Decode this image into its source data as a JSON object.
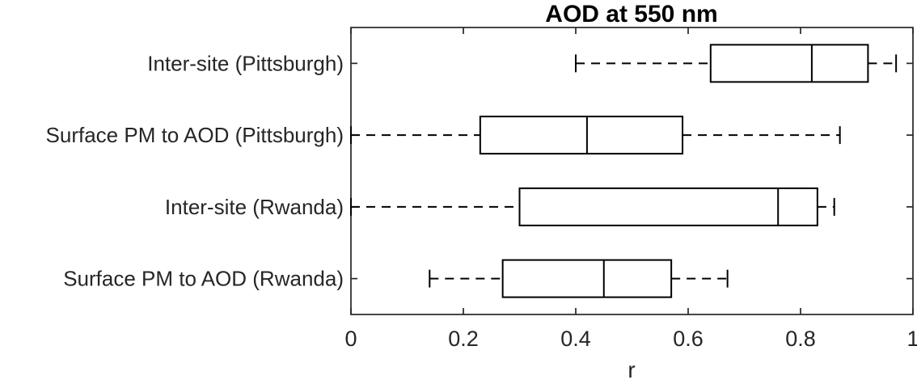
{
  "chart_data": {
    "type": "boxplot",
    "orientation": "horizontal",
    "title": "AOD at 550 nm",
    "xlabel": "r",
    "xlim": [
      0,
      1
    ],
    "xticks": [
      0,
      0.2,
      0.4,
      0.6,
      0.8,
      1
    ],
    "xtick_labels": [
      "0",
      "0.2",
      "0.4",
      "0.6",
      "0.8",
      "1"
    ],
    "grid": false,
    "legend": "none",
    "categories": [
      "Inter-site (Pittsburgh)",
      "Surface PM to AOD (Pittsburgh)",
      "Inter-site (Rwanda)",
      "Surface PM to AOD (Rwanda)"
    ],
    "boxes": [
      {
        "label": "Inter-site (Pittsburgh)",
        "whisker_low": 0.4,
        "q1": 0.64,
        "median": 0.82,
        "q3": 0.92,
        "whisker_high": 0.97
      },
      {
        "label": "Surface PM to AOD (Pittsburgh)",
        "whisker_low": 0.0,
        "q1": 0.23,
        "median": 0.42,
        "q3": 0.59,
        "whisker_high": 0.87
      },
      {
        "label": "Inter-site (Rwanda)",
        "whisker_low": 0.0,
        "q1": 0.3,
        "median": 0.76,
        "q3": 0.83,
        "whisker_high": 0.86
      },
      {
        "label": "Surface PM to AOD (Rwanda)",
        "whisker_low": 0.14,
        "q1": 0.27,
        "median": 0.45,
        "q3": 0.57,
        "whisker_high": 0.67
      }
    ],
    "styles": {
      "background": "#ffffff",
      "axis_color": "#262626",
      "text_color": "#262626",
      "box_color": "#000000",
      "box_fill": "#ffffff",
      "whisker_style": "dashed"
    }
  }
}
